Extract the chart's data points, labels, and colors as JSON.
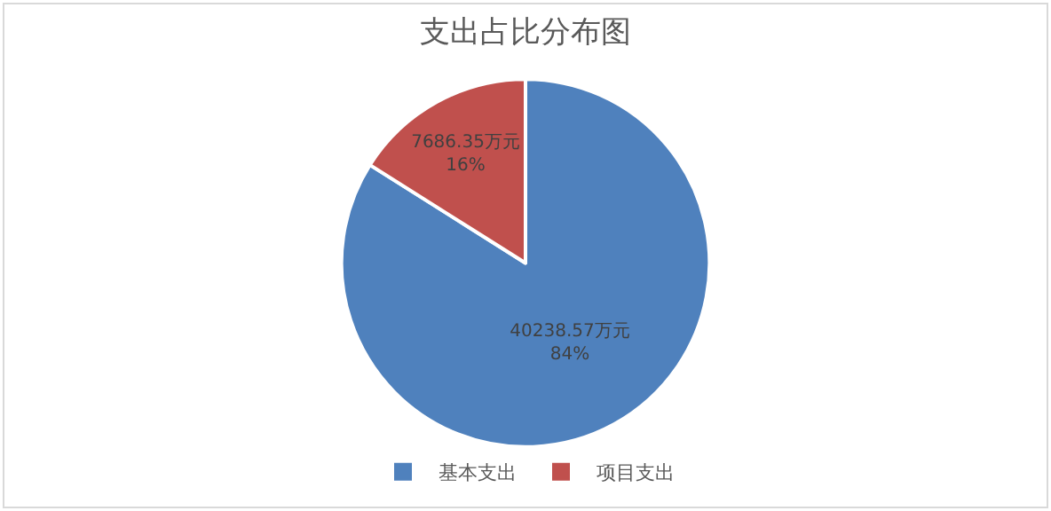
{
  "chart_data": {
    "type": "pie",
    "title": "支出占比分布图",
    "categories": [
      "基本支出",
      "项目支出"
    ],
    "values": [
      40238.57,
      7686.35
    ],
    "colors": [
      "#4f81bd",
      "#c0504d"
    ],
    "value_labels": [
      "40238.57万元\n84%",
      "7686.35万元\n16%"
    ],
    "legend": "bottom"
  }
}
